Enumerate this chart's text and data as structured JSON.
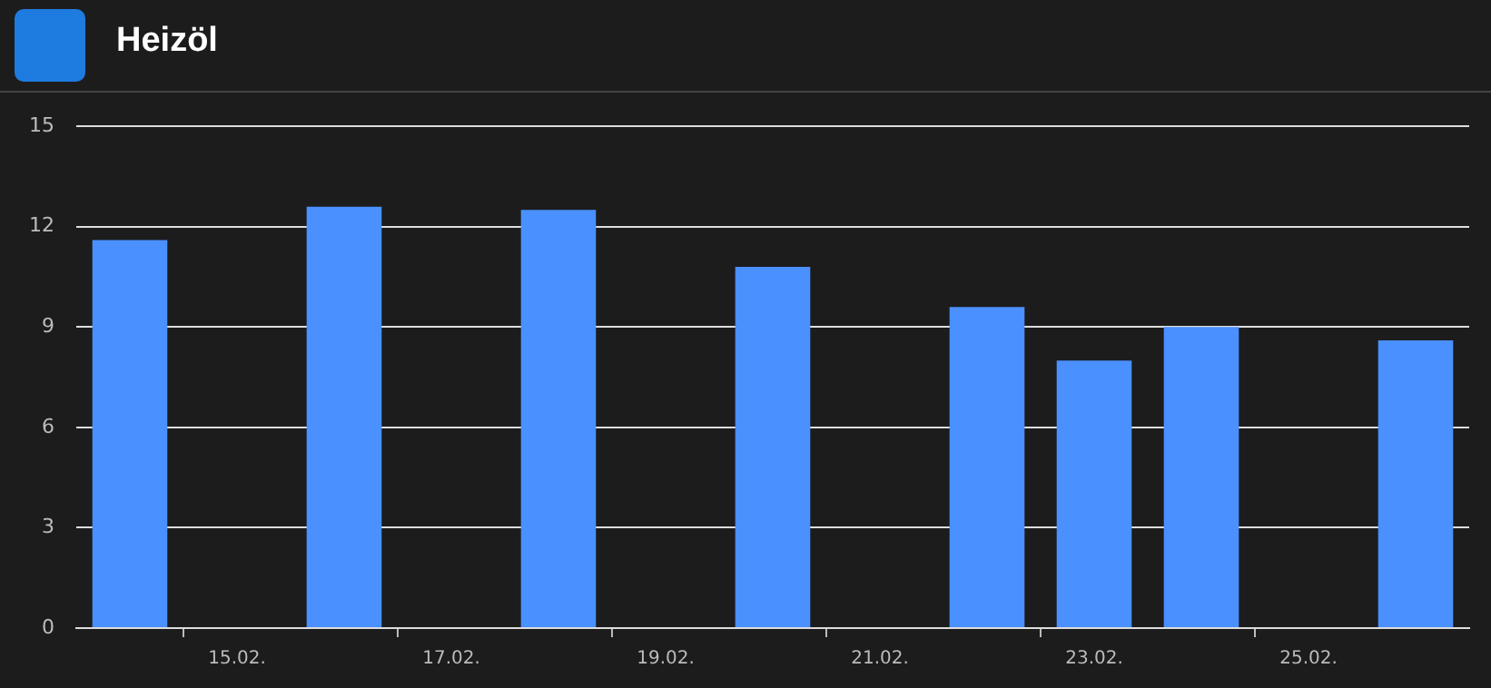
{
  "chart_data": {
    "type": "bar",
    "title": "Heizöl",
    "categories": [
      null,
      "15.02.",
      null,
      "17.02.",
      null,
      "19.02.",
      null,
      "21.02.",
      null,
      "23.02.",
      null,
      "25.02.",
      null
    ],
    "values": [
      11.6,
      null,
      12.6,
      null,
      12.5,
      null,
      10.8,
      null,
      9.6,
      8.0,
      9.0,
      null,
      8.6
    ],
    "color": "#4a90ff",
    "ylim": [
      0,
      15
    ],
    "yticks": [
      0,
      3,
      6,
      9,
      12,
      15
    ],
    "grid": "y",
    "legend": false
  }
}
